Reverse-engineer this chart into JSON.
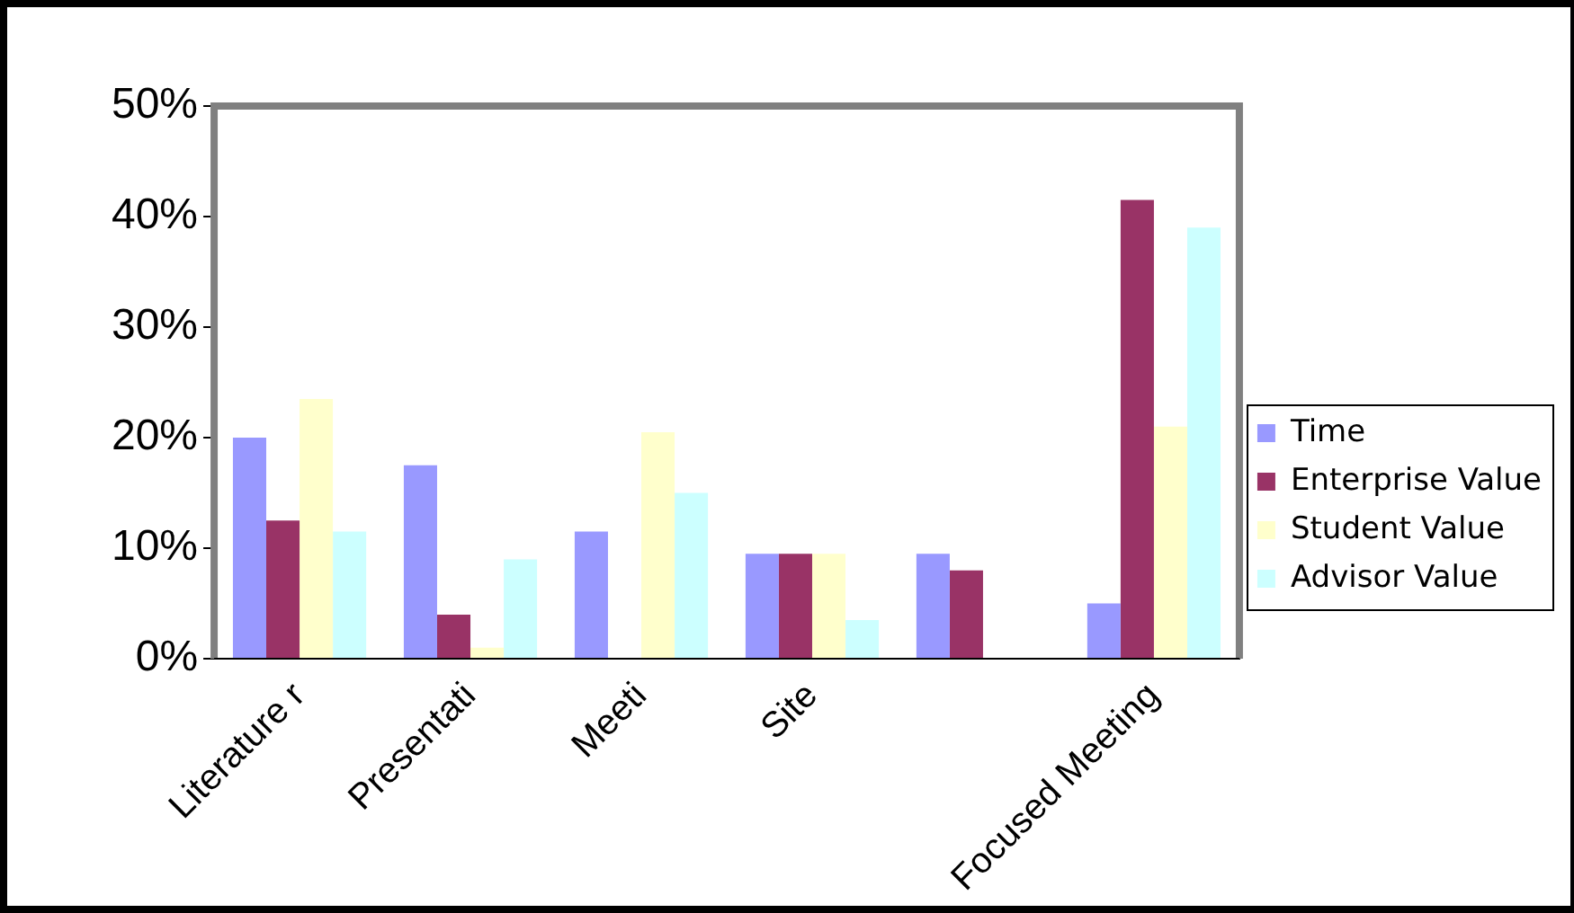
{
  "chart_data": {
    "type": "bar",
    "categories": [
      "Literature r",
      "Presentati",
      "Meeti",
      "Site",
      null,
      "Focused Meeting"
    ],
    "series": [
      {
        "name": "Time",
        "color": "#9999ff",
        "values": [
          20,
          17.5,
          11.5,
          9.5,
          9.5,
          5
        ]
      },
      {
        "name": "Enterprise Value",
        "color": "#993366",
        "values": [
          12.5,
          4,
          0,
          9.5,
          8,
          41.5
        ]
      },
      {
        "name": "Student Value",
        "color": "#ffffcc",
        "values": [
          23.5,
          1,
          20.5,
          9.5,
          0,
          21
        ]
      },
      {
        "name": "Advisor Value",
        "color": "#ccffff",
        "values": [
          11.5,
          9,
          15,
          3.5,
          0,
          39
        ]
      }
    ],
    "ylim": [
      0,
      50
    ],
    "yticks": [
      {
        "value": 0,
        "label": "0%"
      },
      {
        "value": 10,
        "label": "10%"
      },
      {
        "value": 20,
        "label": "20%"
      },
      {
        "value": 30,
        "label": "30%"
      },
      {
        "value": 40,
        "label": "40%"
      },
      {
        "value": 50,
        "label": "50%"
      }
    ],
    "grid": false,
    "legend": "right"
  }
}
